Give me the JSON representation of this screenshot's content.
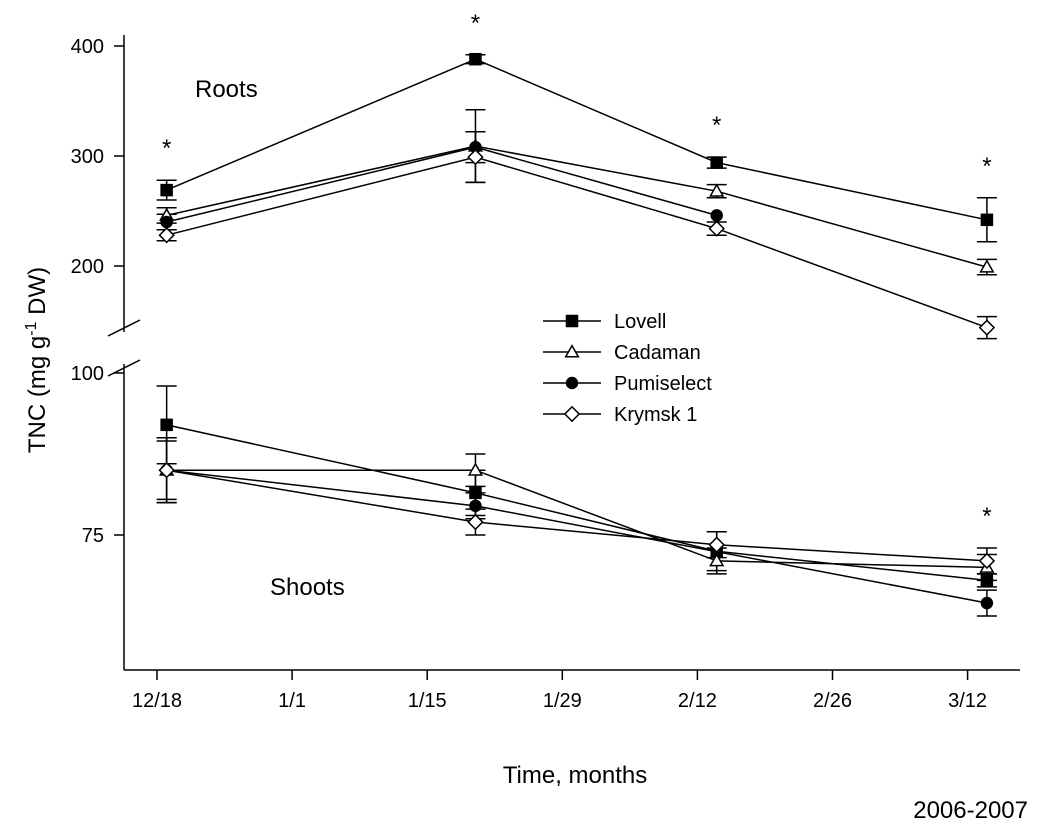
{
  "chart_data": {
    "type": "line",
    "ylabel_main": "TNC (mg g",
    "ylabel_sup": "-1",
    "ylabel_tail": " DW)",
    "xlabel": "Time, months",
    "footnote": "2006-2007",
    "x_ticks": [
      "12/18",
      "1/1",
      "1/15",
      "1/29",
      "2/12",
      "2/26",
      "3/12"
    ],
    "y_ticks_top": [
      "400",
      "300",
      "200"
    ],
    "y_ticks_bottom": [
      "100",
      "75"
    ],
    "x": [
      "12/19",
      "1/20",
      "2/14",
      "3/14"
    ],
    "panels": [
      {
        "label": "Roots",
        "ylim": [
          135,
          405
        ],
        "significance": [
          "*",
          "*",
          "*",
          "*"
        ],
        "series": [
          {
            "name": "Lovell",
            "marker": "square-filled",
            "values": [
              269,
              388,
              294,
              242
            ],
            "errors": [
              9,
              4,
              5,
              20
            ]
          },
          {
            "name": "Cadaman",
            "marker": "triangle-open",
            "values": [
              246,
              309,
              268,
              199
            ],
            "errors": [
              7,
              33,
              6,
              7
            ]
          },
          {
            "name": "Pumiselect",
            "marker": "circle-filled",
            "values": [
              240,
              308,
              246,
              null
            ],
            "errors": [
              7,
              14,
              0,
              null
            ]
          },
          {
            "name": "Krymsk 1",
            "marker": "diamond-open",
            "values": [
              228,
              299,
              234,
              144
            ],
            "errors": [
              5,
              23,
              6,
              10
            ]
          }
        ]
      },
      {
        "label": "Shoots",
        "ylim": [
          63,
          100
        ],
        "significance": [
          null,
          null,
          null,
          "*"
        ],
        "series": [
          {
            "name": "Lovell",
            "marker": "square-filled",
            "values": [
              92,
              81.5,
              72.5,
              68
            ],
            "errors": [
              6,
              3.5,
              3,
              1
            ]
          },
          {
            "name": "Cadaman",
            "marker": "triangle-open",
            "values": [
              85,
              85,
              71,
              70
            ],
            "errors": [
              5,
              2.5,
              2,
              2
            ]
          },
          {
            "name": "Pumiselect",
            "marker": "circle-filled",
            "values": [
              85,
              79.5,
              null,
              64.5
            ],
            "errors": [
              5,
              2,
              null,
              2
            ]
          },
          {
            "name": "Krymsk 1",
            "marker": "diamond-open",
            "values": [
              85,
              77,
              73.5,
              71
            ],
            "errors": [
              4.5,
              2,
              2,
              2
            ]
          }
        ]
      }
    ],
    "legend": [
      "Lovell",
      "Cadaman",
      "Pumiselect",
      "Krymsk 1"
    ],
    "legend_position": "center"
  }
}
